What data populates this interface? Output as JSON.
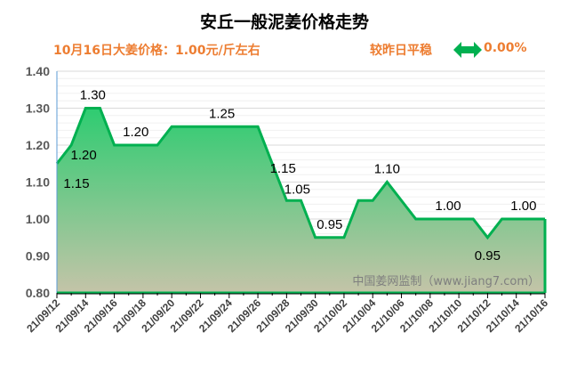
{
  "header": {
    "title": "安丘一般泥姜价格走势",
    "price_text": "10月16日大姜价格：1.00元/斤左右",
    "compare_text": "较昨日平稳",
    "change_icon": "double-arrow-icon",
    "change_pct": "0.00%"
  },
  "colors": {
    "line": "#00b050",
    "fill_top": "#2ecc71",
    "fill_bottom": "#c4c4a8",
    "accent": "#ed7d31"
  },
  "chart_data": {
    "type": "area",
    "title": "安丘一般泥姜价格走势",
    "watermark": "中国姜网监制（www.jiang7.com）",
    "x": [
      "21/09/12",
      "21/09/13",
      "21/09/14",
      "21/09/15",
      "21/09/16",
      "21/09/17",
      "21/09/18",
      "21/09/19",
      "21/09/20",
      "21/09/21",
      "21/09/22",
      "21/09/23",
      "21/09/24",
      "21/09/25",
      "21/09/26",
      "21/09/27",
      "21/09/28",
      "21/09/29",
      "21/09/30",
      "21/10/01",
      "21/10/02",
      "21/10/03",
      "21/10/04",
      "21/10/05",
      "21/10/06",
      "21/10/07",
      "21/10/08",
      "21/10/09",
      "21/10/10",
      "21/10/11",
      "21/10/12",
      "21/10/13",
      "21/10/14",
      "21/10/15",
      "21/10/16"
    ],
    "values": [
      1.15,
      1.2,
      1.3,
      1.3,
      1.2,
      1.2,
      1.2,
      1.2,
      1.25,
      1.25,
      1.25,
      1.25,
      1.25,
      1.25,
      1.25,
      1.15,
      1.05,
      1.05,
      0.95,
      0.95,
      0.95,
      1.05,
      1.05,
      1.1,
      1.05,
      1.0,
      1.0,
      1.0,
      1.0,
      1.0,
      0.95,
      1.0,
      1.0,
      1.0,
      1.0
    ],
    "xtick_labels": [
      "21/09/12",
      "21/09/14",
      "21/09/16",
      "21/09/18",
      "21/09/20",
      "21/09/22",
      "21/09/24",
      "21/09/26",
      "21/09/28",
      "21/09/30",
      "21/10/02",
      "21/10/04",
      "21/10/06",
      "21/10/08",
      "21/10/10",
      "21/10/12",
      "21/10/14",
      "21/10/16"
    ],
    "ytick_labels": [
      "0.80",
      "0.90",
      "1.00",
      "1.10",
      "1.20",
      "1.30",
      "1.40"
    ],
    "ylim": [
      0.8,
      1.4
    ],
    "grid": true,
    "data_labels": [
      {
        "x": "21/09/12",
        "text": "1.15"
      },
      {
        "x": "21/09/13",
        "text": "1.20"
      },
      {
        "x": "21/09/14",
        "text": "1.30"
      },
      {
        "x": "21/09/17",
        "text": "1.20"
      },
      {
        "x": "21/09/23",
        "text": "1.25"
      },
      {
        "x": "21/09/27",
        "text": "1.15"
      },
      {
        "x": "21/09/28",
        "text": "1.05"
      },
      {
        "x": "21/10/01",
        "text": "0.95"
      },
      {
        "x": "21/10/05",
        "text": "1.10"
      },
      {
        "x": "21/10/09",
        "text": "1.00"
      },
      {
        "x": "21/10/12",
        "text": "0.95"
      },
      {
        "x": "21/10/15",
        "text": "1.00"
      }
    ]
  }
}
